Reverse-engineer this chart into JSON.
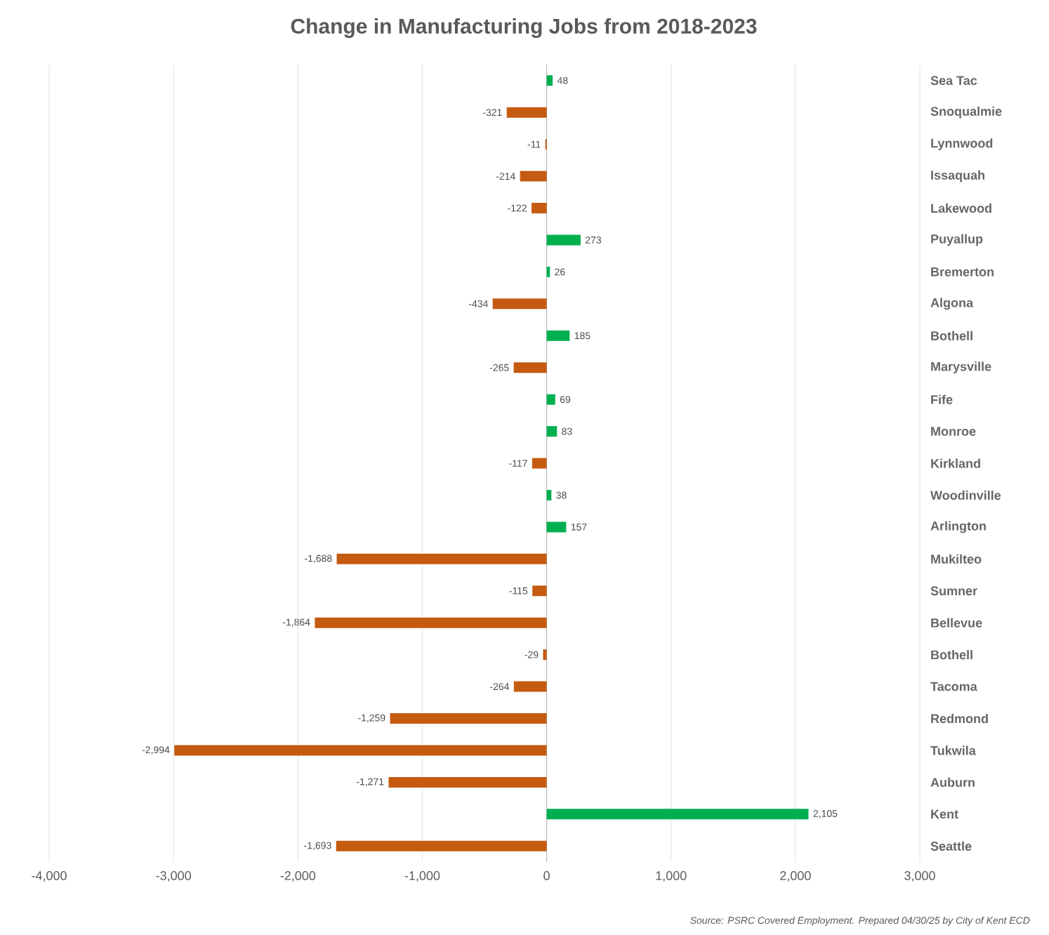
{
  "chart_data": {
    "type": "bar",
    "orientation": "horizontal",
    "title": "Change in Manufacturing Jobs from 2018-2023",
    "categories": [
      "Sea Tac",
      "Snoqualmie",
      "Lynnwood",
      "Issaquah",
      "Lakewood",
      "Puyallup",
      "Bremerton",
      "Algona",
      "Bothell",
      "Marysville",
      "Fife",
      "Monroe",
      "Kirkland",
      "Woodinville",
      "Arlington",
      "Mukilteo",
      "Sumner",
      "Bellevue",
      "Bothell",
      "Tacoma",
      "Redmond",
      "Tukwila",
      "Auburn",
      "Kent",
      "Seattle"
    ],
    "values": [
      48,
      -321,
      -11,
      -214,
      -122,
      273,
      26,
      -434,
      185,
      -265,
      69,
      83,
      -117,
      38,
      157,
      -1688,
      -115,
      -1864,
      -29,
      -264,
      -1259,
      -2994,
      -1271,
      2105,
      -1693
    ],
    "colors": [
      "#00b050",
      "#c55a11",
      "#c55a11",
      "#c55a11",
      "#c55a11",
      "#00b050",
      "#00b050",
      "#c55a11",
      "#00b050",
      "#c55a11",
      "#00b050",
      "#00b050",
      "#c55a11",
      "#00b050",
      "#00b050",
      "#c55a11",
      "#c55a11",
      "#c55a11",
      "#c55a11",
      "#c55a11",
      "#c55a11",
      "#c55a11",
      "#c55a11",
      "#00b050",
      "#c55a11"
    ],
    "value_labels": [
      "48",
      "-321",
      "-11",
      "-214",
      "-122",
      "273",
      "26",
      "-434",
      "185",
      "-265",
      "69",
      "83",
      "-117",
      "38",
      "157",
      "-1,688",
      "-115",
      "-1,864",
      "-29",
      "-264",
      "-1,259",
      "-2,994",
      "-1,271",
      "2,105",
      "-1,693"
    ],
    "xlim": [
      -4000,
      3000
    ],
    "xticks": [
      {
        "value": -4000,
        "label": "-4,000"
      },
      {
        "value": -3000,
        "label": "-3,000"
      },
      {
        "value": -2000,
        "label": "-2,000"
      },
      {
        "value": -1000,
        "label": "-1,000"
      },
      0,
      {
        "value": 1000,
        "label": "1,000"
      },
      {
        "value": 2000,
        "label": "2,000"
      },
      {
        "value": 3000,
        "label": "3,000"
      }
    ],
    "grid": "x",
    "annotations": [
      "Source:  PSRC Covered Employment.  Prepared 04/30/25 by City of Kent ECD"
    ]
  }
}
